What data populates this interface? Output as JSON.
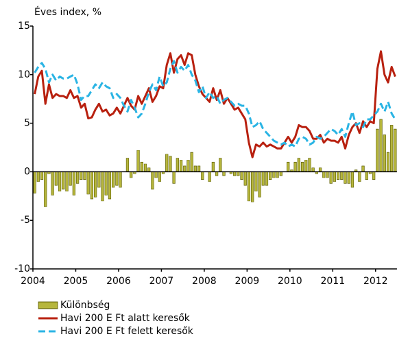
{
  "chart_data": {
    "type": "combo",
    "ylabel": "Éves index, %",
    "categories": [
      "2004",
      null,
      null,
      null,
      null,
      null,
      null,
      null,
      null,
      null,
      null,
      null,
      "2005",
      null,
      null,
      null,
      null,
      null,
      null,
      null,
      null,
      null,
      null,
      null,
      "2006",
      null,
      null,
      null,
      null,
      null,
      null,
      null,
      null,
      null,
      null,
      null,
      "2007",
      null,
      null,
      null,
      null,
      null,
      null,
      null,
      null,
      null,
      null,
      null,
      "2008",
      null,
      null,
      null,
      null,
      null,
      null,
      null,
      null,
      null,
      null,
      null,
      "2009",
      null,
      null,
      null,
      null,
      null,
      null,
      null,
      null,
      null,
      null,
      null,
      "2010",
      null,
      null,
      null,
      null,
      null,
      null,
      null,
      null,
      null,
      null,
      null,
      "2011",
      null,
      null,
      null,
      null,
      null,
      null,
      null,
      null,
      null,
      null,
      null,
      "2012",
      null,
      null,
      null,
      null,
      null
    ],
    "ylim": [
      -10,
      15
    ],
    "yticks": [
      -10,
      -5,
      0,
      5,
      10,
      15
    ],
    "series": [
      {
        "name": "Különbség",
        "type": "bar",
        "color": "#e0e050",
        "values": [
          -2.2,
          -1.0,
          -0.8,
          -3.6,
          -0.2,
          -2.4,
          -1.4,
          -2.0,
          -1.8,
          -2.0,
          -1.4,
          -2.4,
          -1.2,
          -0.8,
          -0.8,
          -2.3,
          -2.8,
          -2.6,
          -1.6,
          -3.0,
          -2.4,
          -2.8,
          -1.6,
          -1.4,
          -1.6,
          0,
          1.4,
          -0.6,
          -0.2,
          2.2,
          1.0,
          0.8,
          0.4,
          -1.8,
          -0.6,
          -1.0,
          -0.2,
          1.8,
          1.6,
          -1.2,
          1.4,
          1.2,
          0.6,
          1.2,
          2.0,
          0.6,
          0.6,
          -0.8,
          0,
          -1.0,
          1.0,
          -0.4,
          1.4,
          -0.4,
          0,
          -0.2,
          -0.4,
          -0.4,
          -0.8,
          -1.4,
          -3.0,
          -3.1,
          -2.0,
          -2.6,
          -1.4,
          -1.4,
          -0.8,
          -0.6,
          -0.6,
          -0.4,
          0,
          1.0,
          0.2,
          1.0,
          1.4,
          1.0,
          1.2,
          1.4,
          0.4,
          -0.2,
          0.4,
          -0.6,
          -0.6,
          -1.2,
          -1.0,
          -0.8,
          -0.8,
          -1.2,
          -1.2,
          -1.6,
          0.2,
          -1.0,
          0.6,
          -0.8,
          -0.2,
          -0.8,
          4.4,
          5.4,
          3.8,
          2.0,
          4.8,
          4.4
        ]
      },
      {
        "name": "Havi 200 E Ft alatt keresők",
        "type": "line",
        "color": "#b8200f",
        "line_style": "solid",
        "values": [
          8.0,
          9.8,
          10.4,
          7.0,
          9.0,
          7.6,
          8.0,
          7.8,
          7.8,
          7.6,
          8.4,
          7.6,
          7.8,
          6.6,
          7.0,
          5.5,
          5.6,
          6.4,
          7.0,
          6.2,
          6.4,
          5.8,
          6.0,
          6.6,
          6.0,
          6.8,
          7.6,
          6.8,
          6.4,
          7.8,
          7.0,
          7.8,
          8.6,
          7.2,
          7.8,
          8.8,
          8.6,
          11.0,
          12.2,
          10.2,
          11.6,
          12.0,
          11.0,
          12.2,
          12.0,
          10.0,
          8.8,
          8.0,
          7.6,
          7.2,
          8.6,
          7.4,
          8.4,
          7.0,
          7.6,
          7.0,
          6.4,
          6.6,
          6.0,
          5.4,
          3.0,
          1.5,
          2.8,
          2.6,
          3.0,
          2.6,
          2.8,
          2.6,
          2.4,
          2.4,
          3.0,
          3.6,
          3.0,
          3.6,
          4.8,
          4.6,
          4.6,
          4.2,
          3.4,
          3.4,
          3.8,
          3.0,
          3.4,
          3.2,
          3.2,
          3.0,
          3.6,
          2.4,
          3.8,
          4.6,
          5.0,
          4.0,
          5.2,
          4.6,
          5.2,
          5.0,
          10.6,
          12.4,
          10.0,
          9.2,
          10.8,
          9.8
        ]
      },
      {
        "name": "Havi 200 E Ft felett keresők",
        "type": "line",
        "color": "#2ab4e4",
        "line_style": "dashed",
        "values": [
          10.2,
          10.8,
          11.2,
          10.6,
          9.2,
          10.0,
          9.4,
          9.8,
          9.6,
          9.6,
          9.8,
          10.0,
          9.0,
          7.4,
          7.8,
          7.8,
          8.4,
          9.0,
          8.6,
          9.2,
          8.8,
          8.6,
          7.6,
          8.0,
          7.6,
          6.8,
          6.2,
          7.4,
          6.6,
          5.6,
          6.0,
          7.0,
          8.2,
          9.0,
          8.4,
          9.8,
          8.8,
          9.2,
          10.6,
          11.4,
          10.2,
          10.8,
          10.4,
          11.0,
          10.0,
          9.4,
          8.2,
          8.8,
          7.6,
          8.2,
          7.6,
          7.8,
          7.0,
          7.4,
          7.6,
          7.2,
          6.8,
          7.0,
          6.8,
          6.8,
          6.0,
          4.6,
          4.8,
          5.2,
          4.4,
          4.0,
          3.6,
          3.2,
          3.0,
          2.8,
          3.0,
          2.6,
          2.8,
          2.6,
          3.4,
          3.6,
          3.4,
          2.8,
          3.0,
          3.6,
          3.4,
          3.6,
          4.0,
          4.4,
          4.2,
          3.8,
          4.4,
          3.6,
          5.0,
          6.2,
          4.8,
          5.0,
          4.6,
          5.4,
          5.4,
          5.8,
          6.2,
          7.0,
          6.2,
          7.2,
          6.0,
          5.4
        ]
      }
    ]
  }
}
